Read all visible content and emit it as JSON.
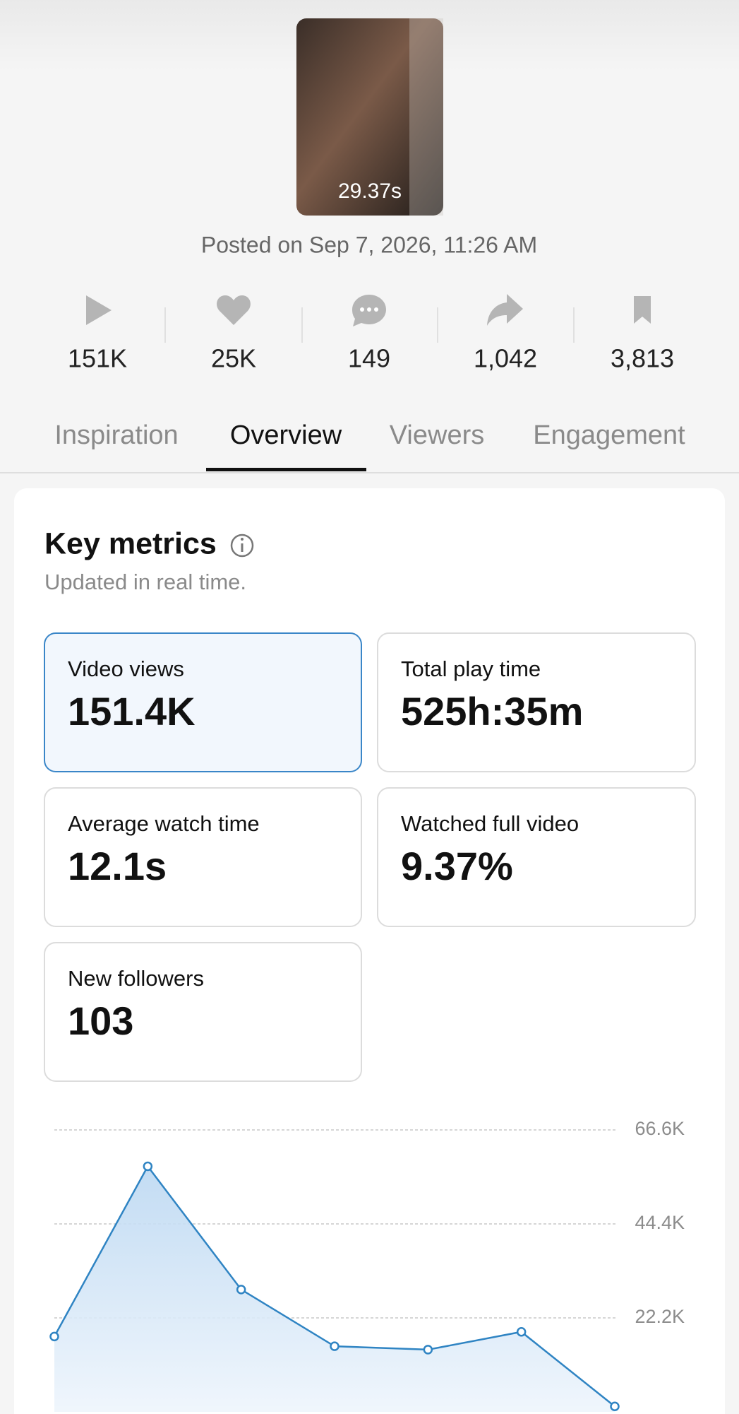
{
  "video": {
    "duration": "29.37s",
    "posted": "Posted on Sep 7, 2026, 11:26 AM"
  },
  "stats": [
    "151K",
    "25K",
    "149",
    "1,042",
    "3,813"
  ],
  "tabs": [
    "Inspiration",
    "Overview",
    "Viewers",
    "Engagement"
  ],
  "key_metrics": {
    "title": "Key metrics",
    "subtitle": "Updated in real time.",
    "metrics": [
      {
        "label": "Video views",
        "value": "151.4K"
      },
      {
        "label": "Total play time",
        "value": "525h:35m"
      },
      {
        "label": "Average watch time",
        "value": "12.1s"
      },
      {
        "label": "Watched full video",
        "value": "9.37%"
      },
      {
        "label": "New followers",
        "value": "103"
      }
    ]
  },
  "chart_data": {
    "type": "line",
    "color": "#2f84c3",
    "values": [
      17800,
      58000,
      28900,
      15500,
      14700,
      18900,
      1300
    ],
    "ylim": [
      0,
      66600
    ],
    "yticks": [
      {
        "value": 22200,
        "label": "22.2K"
      },
      {
        "value": 44400,
        "label": "44.4K"
      },
      {
        "value": 66600,
        "label": "66.6K"
      }
    ],
    "grid": true
  }
}
